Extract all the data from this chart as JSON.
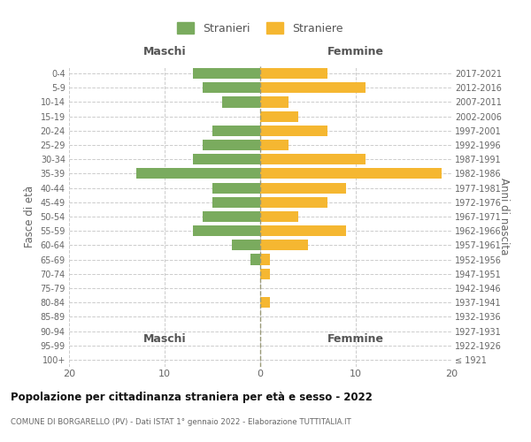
{
  "age_groups": [
    "100+",
    "95-99",
    "90-94",
    "85-89",
    "80-84",
    "75-79",
    "70-74",
    "65-69",
    "60-64",
    "55-59",
    "50-54",
    "45-49",
    "40-44",
    "35-39",
    "30-34",
    "25-29",
    "20-24",
    "15-19",
    "10-14",
    "5-9",
    "0-4"
  ],
  "birth_years": [
    "≤ 1921",
    "1922-1926",
    "1927-1931",
    "1932-1936",
    "1937-1941",
    "1942-1946",
    "1947-1951",
    "1952-1956",
    "1957-1961",
    "1962-1966",
    "1967-1971",
    "1972-1976",
    "1977-1981",
    "1982-1986",
    "1987-1991",
    "1992-1996",
    "1997-2001",
    "2002-2006",
    "2007-2011",
    "2012-2016",
    "2017-2021"
  ],
  "males": [
    0,
    0,
    0,
    0,
    0,
    0,
    0,
    1,
    3,
    7,
    6,
    5,
    5,
    13,
    7,
    6,
    5,
    0,
    4,
    6,
    7
  ],
  "females": [
    0,
    0,
    0,
    0,
    1,
    0,
    1,
    1,
    5,
    9,
    4,
    7,
    9,
    19,
    11,
    3,
    7,
    4,
    3,
    11,
    7
  ],
  "male_color": "#7aab5e",
  "female_color": "#f5b731",
  "background_color": "#ffffff",
  "grid_color": "#cccccc",
  "title": "Popolazione per cittadinanza straniera per età e sesso - 2022",
  "subtitle": "COMUNE DI BORGARELLO (PV) - Dati ISTAT 1° gennaio 2022 - Elaborazione TUTTITALIA.IT",
  "xlabel_left": "Maschi",
  "xlabel_right": "Femmine",
  "ylabel_left": "Fasce di età",
  "ylabel_right": "Anni di nascita",
  "legend_male": "Stranieri",
  "legend_female": "Straniere",
  "xlim": 20
}
